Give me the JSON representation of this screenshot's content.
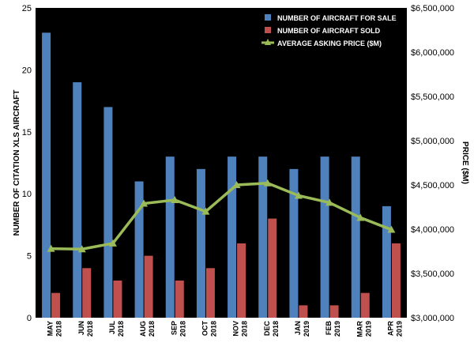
{
  "chart_data": {
    "type": "bar",
    "categories": [
      [
        "MAY",
        "2018"
      ],
      [
        "JUN",
        "2018"
      ],
      [
        "JUL",
        "2018"
      ],
      [
        "AUG",
        "2018"
      ],
      [
        "SEP",
        "2018"
      ],
      [
        "OCT",
        "2018"
      ],
      [
        "NOV",
        "2018"
      ],
      [
        "DEC",
        "2018"
      ],
      [
        "JAN",
        "2019"
      ],
      [
        "FEB",
        "2019"
      ],
      [
        "MAR",
        "2019"
      ],
      [
        "APR",
        "2019"
      ]
    ],
    "series": [
      {
        "name": "NUMBER OF AIRCRAFT FOR SALE",
        "type": "bar",
        "axis": "left",
        "color": "#4f81bd",
        "values": [
          23,
          19,
          17,
          11,
          13,
          12,
          13,
          13,
          12,
          13,
          13,
          9
        ]
      },
      {
        "name": "NUMBER OF AIRCRAFT SOLD",
        "type": "bar",
        "axis": "left",
        "color": "#c0504d",
        "values": [
          2,
          4,
          3,
          5,
          3,
          4,
          6,
          8,
          1,
          1,
          2,
          6
        ]
      },
      {
        "name": "AVERAGE ASKING PRICE ($M)",
        "type": "line",
        "axis": "right",
        "color": "#9bbb59",
        "values": [
          3780000,
          3775000,
          3840000,
          4290000,
          4330000,
          4200000,
          4500000,
          4520000,
          4380000,
          4300000,
          4130000,
          3995000
        ]
      }
    ],
    "ylabel": "NUMBER OF CITATION XLS  AIRCRAFT",
    "y2label": "PRICE ($M)",
    "ylim": [
      0,
      25
    ],
    "y2lim": [
      3000000,
      6500000
    ],
    "yticks": [
      "0",
      "5",
      "10",
      "15",
      "20",
      "25"
    ],
    "y2ticks": [
      "$3,000,000",
      "$3,500,000",
      "$4,000,000",
      "$4,500,000",
      "$5,000,000",
      "$5,500,000",
      "$6,000,000",
      "$6,500,000"
    ],
    "legend_position": "top-right",
    "grid": false,
    "plot_background": "#000000"
  }
}
